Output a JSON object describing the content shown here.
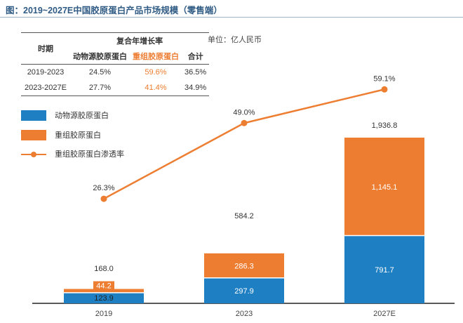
{
  "title": "图：2019~2027E中国胶原蛋白产品市场规模（零售端）",
  "unit_label": "单位：亿人民币",
  "table": {
    "col_period": "时期",
    "group_header": "复合年增长率",
    "col_animal": "动物源胶原蛋白",
    "col_recombinant": "重组胶原蛋白",
    "col_total": "合计",
    "rows": [
      {
        "period": "2019-2023",
        "animal": "24.5%",
        "recombinant": "59.6%",
        "total": "36.5%"
      },
      {
        "period": "2023-2027E",
        "animal": "27.7%",
        "recombinant": "41.4%",
        "total": "34.9%"
      }
    ]
  },
  "legend": {
    "animal": "动物源胶原蛋白",
    "recombinant": "重组胶原蛋白",
    "penetration": "重组胶原蛋白渗透率"
  },
  "colors": {
    "animal": "#1f7fc3",
    "recombinant": "#ed7d31",
    "line": "#ed7d31",
    "title": "#2f5b84"
  },
  "chart_data": {
    "type": "bar",
    "stacked": true,
    "categories": [
      "2019",
      "2023",
      "2027E"
    ],
    "series": [
      {
        "name": "动物源胶原蛋白",
        "values": [
          123.9,
          297.9,
          791.7
        ],
        "labels": [
          "123.9",
          "297.9",
          "791.7"
        ]
      },
      {
        "name": "重组胶原蛋白",
        "values": [
          44.2,
          286.3,
          1145.1
        ],
        "labels": [
          "44.2",
          "286.3",
          "1,145.1"
        ]
      }
    ],
    "totals": [
      168.0,
      584.2,
      1936.8
    ],
    "total_labels": [
      "168.0",
      "584.2",
      "1,936.8"
    ],
    "line_series": {
      "name": "重组胶原蛋白渗透率",
      "values": [
        26.3,
        49.0,
        59.1
      ],
      "labels": [
        "26.3%",
        "49.0%",
        "59.1%"
      ]
    }
  }
}
